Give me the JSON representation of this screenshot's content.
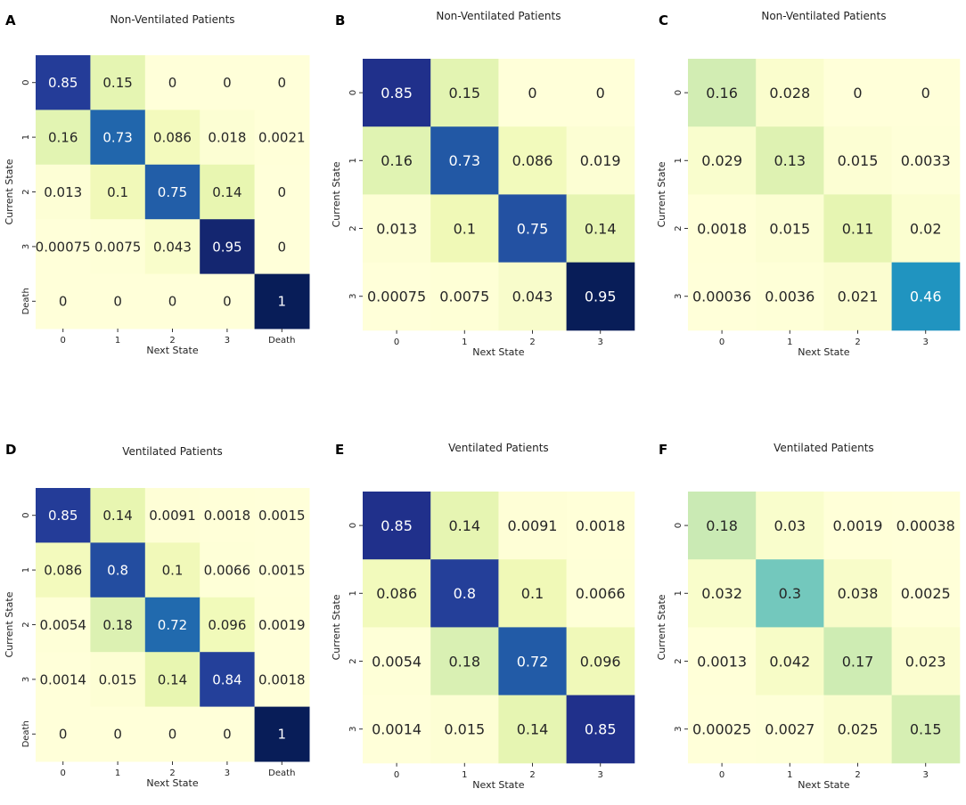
{
  "chart_data": [
    {
      "type": "heatmap",
      "panel": "A",
      "title": "Non-Ventilated Patients",
      "xlabel": "Next State",
      "ylabel": "Current State",
      "x_categories": [
        "0",
        "1",
        "2",
        "3",
        "Death"
      ],
      "y_categories": [
        "0",
        "1",
        "2",
        "3",
        "Death"
      ],
      "values": [
        [
          0.85,
          0.15,
          0,
          0,
          0
        ],
        [
          0.16,
          0.73,
          0.086,
          0.018,
          0.0021
        ],
        [
          0.013,
          0.1,
          0.75,
          0.14,
          0
        ],
        [
          0.00075,
          0.0075,
          0.043,
          0.95,
          0
        ],
        [
          0,
          0,
          0,
          0,
          1
        ]
      ],
      "labels": [
        [
          "0.85",
          "0.15",
          "0",
          "0",
          "0"
        ],
        [
          "0.16",
          "0.73",
          "0.086",
          "0.018",
          "0.0021"
        ],
        [
          "0.013",
          "0.1",
          "0.75",
          "0.14",
          "0"
        ],
        [
          "0.00075",
          "0.0075",
          "0.043",
          "0.95",
          "0"
        ],
        [
          "0",
          "0",
          "0",
          "0",
          "1"
        ]
      ],
      "vmax": 1,
      "colormap": "YlGnBu"
    },
    {
      "type": "heatmap",
      "panel": "B",
      "title": "Non-Ventilated Patients",
      "xlabel": "Next State",
      "ylabel": "Current State",
      "x_categories": [
        "0",
        "1",
        "2",
        "3"
      ],
      "y_categories": [
        "0",
        "1",
        "2",
        "3"
      ],
      "values": [
        [
          0.85,
          0.15,
          0,
          0
        ],
        [
          0.16,
          0.73,
          0.086,
          0.019
        ],
        [
          0.013,
          0.1,
          0.75,
          0.14
        ],
        [
          0.00075,
          0.0075,
          0.043,
          0.95
        ]
      ],
      "labels": [
        [
          "0.85",
          "0.15",
          "0",
          "0"
        ],
        [
          "0.16",
          "0.73",
          "0.086",
          "0.019"
        ],
        [
          "0.013",
          "0.1",
          "0.75",
          "0.14"
        ],
        [
          "0.00075",
          "0.0075",
          "0.043",
          "0.95"
        ]
      ],
      "vmax": 0.95,
      "colormap": "YlGnBu"
    },
    {
      "type": "heatmap",
      "panel": "C",
      "title": "Non-Ventilated Patients",
      "xlabel": "Next State",
      "ylabel": "Current State",
      "x_categories": [
        "0",
        "1",
        "2",
        "3"
      ],
      "y_categories": [
        "0",
        "1",
        "2",
        "3"
      ],
      "values": [
        [
          0.16,
          0.028,
          0,
          0
        ],
        [
          0.029,
          0.13,
          0.015,
          0.0033
        ],
        [
          0.0018,
          0.015,
          0.11,
          0.02
        ],
        [
          0.00036,
          0.0036,
          0.021,
          0.46
        ]
      ],
      "labels": [
        [
          "0.16",
          "0.028",
          "0",
          "0"
        ],
        [
          "0.029",
          "0.13",
          "0.015",
          "0.0033"
        ],
        [
          "0.0018",
          "0.015",
          "0.11",
          "0.02"
        ],
        [
          "0.00036",
          "0.0036",
          "0.021",
          "0.46"
        ]
      ],
      "vmax": 0.75,
      "colormap": "YlGnBu"
    },
    {
      "type": "heatmap",
      "panel": "D",
      "title": "Ventilated Patients",
      "xlabel": "Next State",
      "ylabel": "Current State",
      "x_categories": [
        "0",
        "1",
        "2",
        "3",
        "Death"
      ],
      "y_categories": [
        "0",
        "1",
        "2",
        "3",
        "Death"
      ],
      "values": [
        [
          0.85,
          0.14,
          0.0091,
          0.0018,
          0.0015
        ],
        [
          0.086,
          0.8,
          0.1,
          0.0066,
          0.0015
        ],
        [
          0.0054,
          0.18,
          0.72,
          0.096,
          0.0019
        ],
        [
          0.0014,
          0.015,
          0.14,
          0.84,
          0.0018
        ],
        [
          0,
          0,
          0,
          0,
          1
        ]
      ],
      "labels": [
        [
          "0.85",
          "0.14",
          "0.0091",
          "0.0018",
          "0.0015"
        ],
        [
          "0.086",
          "0.8",
          "0.1",
          "0.0066",
          "0.0015"
        ],
        [
          "0.0054",
          "0.18",
          "0.72",
          "0.096",
          "0.0019"
        ],
        [
          "0.0014",
          "0.015",
          "0.14",
          "0.84",
          "0.0018"
        ],
        [
          "0",
          "0",
          "0",
          "0",
          "1"
        ]
      ],
      "vmax": 1,
      "colormap": "YlGnBu"
    },
    {
      "type": "heatmap",
      "panel": "E",
      "title": "Ventilated Patients",
      "xlabel": "Next State",
      "ylabel": "Current State",
      "x_categories": [
        "0",
        "1",
        "2",
        "3"
      ],
      "y_categories": [
        "0",
        "1",
        "2",
        "3"
      ],
      "values": [
        [
          0.85,
          0.14,
          0.0091,
          0.0018
        ],
        [
          0.086,
          0.8,
          0.1,
          0.0066
        ],
        [
          0.0054,
          0.18,
          0.72,
          0.096
        ],
        [
          0.0014,
          0.015,
          0.14,
          0.85
        ]
      ],
      "labels": [
        [
          "0.85",
          "0.14",
          "0.0091",
          "0.0018"
        ],
        [
          "0.086",
          "0.8",
          "0.1",
          "0.0066"
        ],
        [
          "0.0054",
          "0.18",
          "0.72",
          "0.096"
        ],
        [
          "0.0014",
          "0.015",
          "0.14",
          "0.85"
        ]
      ],
      "vmax": 0.95,
      "colormap": "YlGnBu"
    },
    {
      "type": "heatmap",
      "panel": "F",
      "title": "Ventilated Patients",
      "xlabel": "Next State",
      "ylabel": "Current State",
      "x_categories": [
        "0",
        "1",
        "2",
        "3"
      ],
      "y_categories": [
        "0",
        "1",
        "2",
        "3"
      ],
      "values": [
        [
          0.18,
          0.03,
          0.0019,
          0.00038
        ],
        [
          0.032,
          0.3,
          0.038,
          0.0025
        ],
        [
          0.0013,
          0.042,
          0.17,
          0.023
        ],
        [
          0.00025,
          0.0027,
          0.025,
          0.15
        ]
      ],
      "labels": [
        [
          "0.18",
          "0.03",
          "0.0019",
          "0.00038"
        ],
        [
          "0.032",
          "0.3",
          "0.038",
          "0.0025"
        ],
        [
          "0.0013",
          "0.042",
          "0.17",
          "0.023"
        ],
        [
          "0.00025",
          "0.0027",
          "0.025",
          "0.15"
        ]
      ],
      "vmax": 0.75,
      "colormap": "YlGnBu"
    }
  ]
}
